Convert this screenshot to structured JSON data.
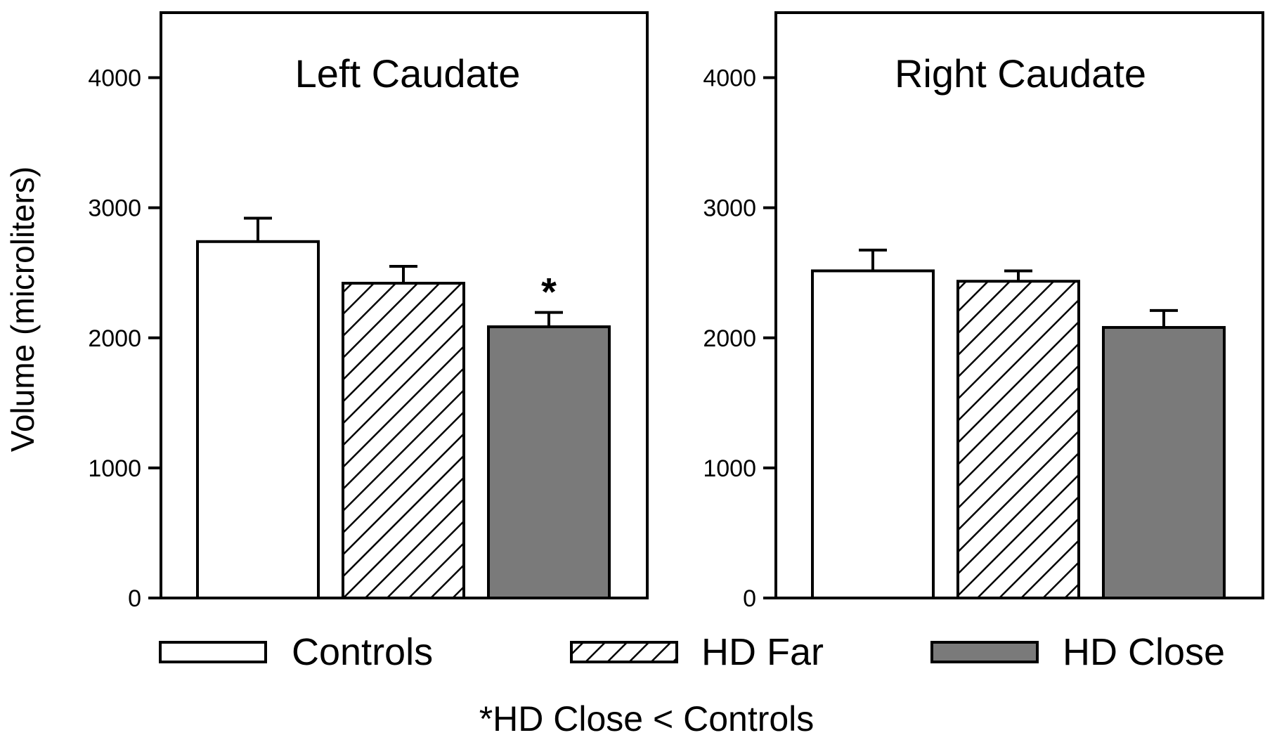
{
  "chart_data": {
    "type": "bar",
    "ylabel": "Volume (microliters)",
    "ylim": [
      0,
      4500
    ],
    "yticks": [
      "0",
      "1000",
      "2000",
      "3000",
      "4000"
    ],
    "grid": false,
    "legend_position": "bottom",
    "colors": {
      "Controls": "#ffffff",
      "HD Far": "hatched",
      "HD Close": "#7a7a7a"
    },
    "series_names": [
      "Controls",
      "HD Far",
      "HD Close"
    ],
    "footnote": "*HD Close < Controls",
    "panels": [
      {
        "title": "Left Caudate",
        "values": [
          2740,
          2420,
          2085
        ],
        "errors": [
          180,
          130,
          110
        ],
        "markers": [
          "",
          "",
          "*"
        ]
      },
      {
        "title": "Right Caudate",
        "values": [
          2515,
          2435,
          2080
        ],
        "errors": [
          160,
          80,
          130
        ],
        "markers": [
          "",
          "",
          ""
        ]
      }
    ]
  }
}
